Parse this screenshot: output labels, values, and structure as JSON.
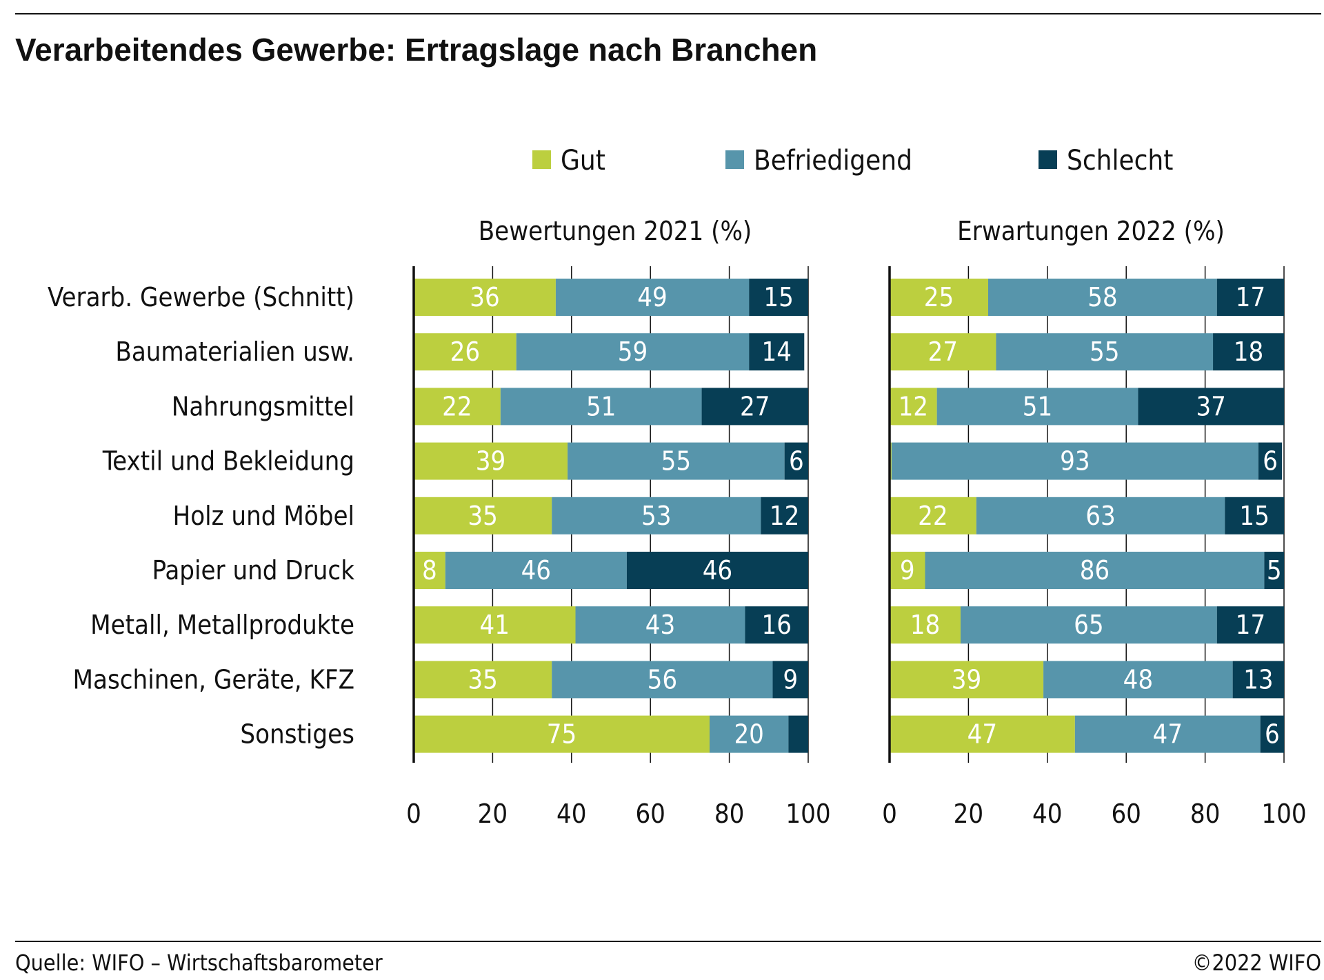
{
  "title": "Verarbeitendes Gewerbe: Ertragslage nach Branchen",
  "source": "Quelle: WIFO – Wirtschaftsbarometer",
  "copyright": "©2022 WIFO",
  "colors": {
    "gut": "#bccf3f",
    "befriedigend": "#5795ab",
    "schlecht": "#073e55"
  },
  "chart_data": {
    "type": "bar",
    "orientation": "horizontal",
    "stacked": true,
    "legend": [
      "Gut",
      "Befriedigend",
      "Schlecht"
    ],
    "legend_position": "top",
    "categories": [
      "Verarb. Gewerbe (Schnitt)",
      "Baumaterialien usw.",
      "Nahrungsmittel",
      "Textil und Bekleidung",
      "Holz und Möbel",
      "Papier und Druck",
      "Metall, Metallprodukte",
      "Maschinen, Geräte, KFZ",
      "Sonstiges"
    ],
    "xlim": [
      0,
      100
    ],
    "xticks": [
      0,
      20,
      40,
      60,
      80,
      100
    ],
    "grid": "vertical",
    "panels": [
      {
        "title": "Bewertungen 2021 (%)",
        "series": [
          {
            "name": "Gut",
            "values": [
              36,
              26,
              22,
              39,
              35,
              8,
              41,
              35,
              75
            ]
          },
          {
            "name": "Befriedigend",
            "values": [
              49,
              59,
              51,
              55,
              53,
              46,
              43,
              56,
              20
            ]
          },
          {
            "name": "Schlecht",
            "values": [
              15,
              14,
              27,
              6,
              12,
              46,
              16,
              9,
              5
            ]
          }
        ],
        "labels": [
          [
            "36",
            "26",
            "22",
            "39",
            "35",
            "8",
            "41",
            "35",
            "75"
          ],
          [
            "49",
            "59",
            "51",
            "55",
            "53",
            "46",
            "43",
            "56",
            "20"
          ],
          [
            "15",
            "14",
            "27",
            "6",
            "12",
            "46",
            "16",
            "9",
            ""
          ]
        ]
      },
      {
        "title": "Erwartungen 2022 (%)",
        "series": [
          {
            "name": "Gut",
            "values": [
              25,
              27,
              12,
              0.5,
              22,
              9,
              18,
              39,
              47
            ]
          },
          {
            "name": "Befriedigend",
            "values": [
              58,
              55,
              51,
              93,
              63,
              86,
              65,
              48,
              47
            ]
          },
          {
            "name": "Schlecht",
            "values": [
              17,
              18,
              37,
              6,
              15,
              5,
              17,
              13,
              6
            ]
          }
        ],
        "labels": [
          [
            "25",
            "27",
            "12",
            "",
            "22",
            "9",
            "18",
            "39",
            "47"
          ],
          [
            "58",
            "55",
            "51",
            "93",
            "63",
            "86",
            "65",
            "48",
            "47"
          ],
          [
            "17",
            "18",
            "37",
            "6",
            "15",
            "5",
            "17",
            "13",
            "6"
          ]
        ]
      }
    ]
  }
}
